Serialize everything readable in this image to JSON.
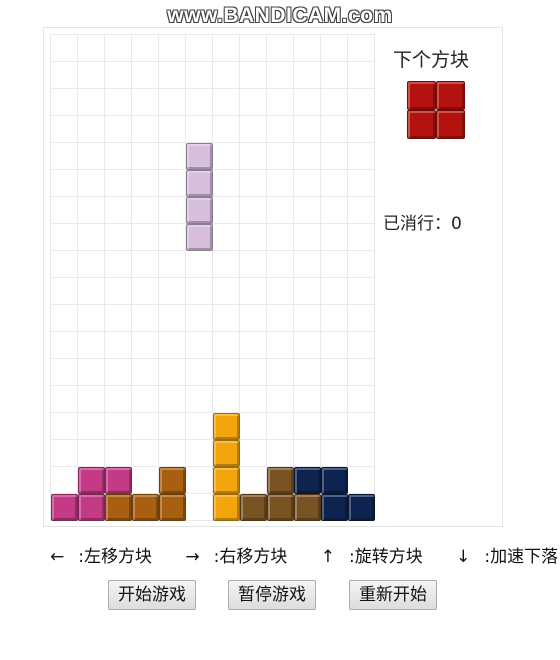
{
  "watermark": "www.BANDICAM.com",
  "next_piece": {
    "title": "下个方块",
    "color": "#b3120e",
    "cells": [
      [
        0,
        0
      ],
      [
        1,
        0
      ],
      [
        0,
        1
      ],
      [
        1,
        1
      ]
    ]
  },
  "stats": {
    "lines_label": "已消行：",
    "lines_value": "0"
  },
  "board": {
    "cols": 12,
    "rows": 18,
    "falling_piece": {
      "color": "#d7bfdc",
      "cells": [
        [
          5,
          4
        ],
        [
          5,
          5
        ],
        [
          5,
          6
        ],
        [
          5,
          7
        ]
      ]
    },
    "settled": [
      {
        "col": 0,
        "row": 17,
        "color": "#c33a86"
      },
      {
        "col": 1,
        "row": 16,
        "color": "#c33a86"
      },
      {
        "col": 1,
        "row": 17,
        "color": "#c33a86"
      },
      {
        "col": 2,
        "row": 16,
        "color": "#c33a86"
      },
      {
        "col": 2,
        "row": 17,
        "color": "#a85f10"
      },
      {
        "col": 3,
        "row": 17,
        "color": "#a85f10"
      },
      {
        "col": 4,
        "row": 16,
        "color": "#a85f10"
      },
      {
        "col": 4,
        "row": 17,
        "color": "#a85f10"
      },
      {
        "col": 6,
        "row": 14,
        "color": "#f2a50d"
      },
      {
        "col": 6,
        "row": 15,
        "color": "#f2a50d"
      },
      {
        "col": 6,
        "row": 16,
        "color": "#f2a50d"
      },
      {
        "col": 6,
        "row": 17,
        "color": "#f2a50d"
      },
      {
        "col": 7,
        "row": 17,
        "color": "#7a5322"
      },
      {
        "col": 8,
        "row": 16,
        "color": "#7a5322"
      },
      {
        "col": 8,
        "row": 17,
        "color": "#7a5322"
      },
      {
        "col": 9,
        "row": 16,
        "color": "#0e2350"
      },
      {
        "col": 9,
        "row": 17,
        "color": "#7a5322"
      },
      {
        "col": 10,
        "row": 16,
        "color": "#0e2350"
      },
      {
        "col": 10,
        "row": 17,
        "color": "#0e2350"
      },
      {
        "col": 11,
        "row": 17,
        "color": "#0e2350"
      }
    ]
  },
  "instructions": [
    {
      "key": "←",
      "text": ":左移方块"
    },
    {
      "key": "→",
      "text": ":右移方块"
    },
    {
      "key": "↑",
      "text": ":旋转方块"
    },
    {
      "key": "↓",
      "text": ":加速下落"
    }
  ],
  "buttons": {
    "start": "开始游戏",
    "pause": "暂停游戏",
    "restart": "重新开始"
  }
}
